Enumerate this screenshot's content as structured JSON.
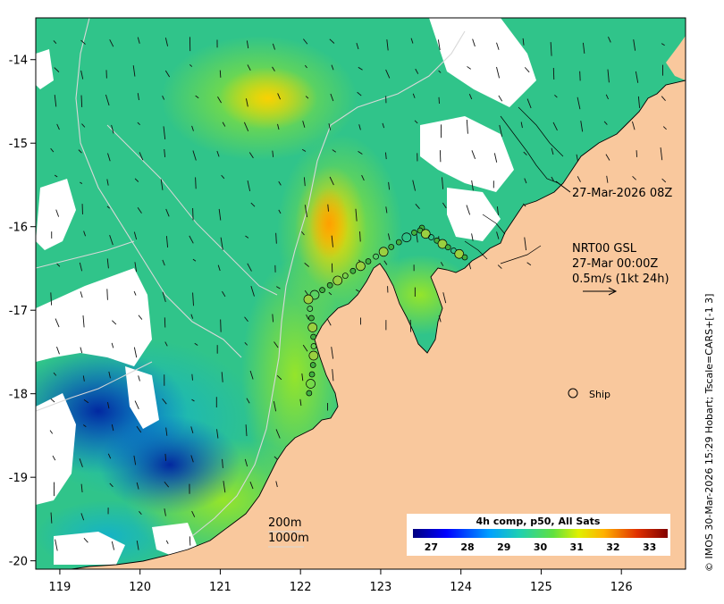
{
  "map": {
    "lon_ticks": [
      "119",
      "120",
      "121",
      "122",
      "123",
      "124",
      "125",
      "126"
    ],
    "lat_ticks": [
      "-14",
      "-15",
      "-16",
      "-17",
      "-18",
      "-19",
      "-20"
    ],
    "lon_range": [
      118.7,
      126.8
    ],
    "lat_range": [
      -20.1,
      -13.5
    ]
  },
  "annotations": {
    "timestamp": "27-Mar-2026 08Z",
    "current_line1": "NRT00 GSL",
    "current_line2": "27-Mar 00:00Z",
    "current_line3": "0.5m/s (1kt 24h)",
    "ship_label": "Ship",
    "contour_200": "200m",
    "contour_1000": "1000m",
    "side_credit": "© IMOS 30-Mar-2026 15:29 Hobart; Tscale=CARS+[-1 3]"
  },
  "colorbar": {
    "title": "4h comp, p50, All Sats",
    "ticks": [
      "27",
      "28",
      "29",
      "30",
      "31",
      "32",
      "33"
    ],
    "range": [
      26.5,
      33.5
    ]
  },
  "colors": {
    "land": "#f9c89d",
    "cloud": "#ffffff",
    "frame": "#000000"
  }
}
